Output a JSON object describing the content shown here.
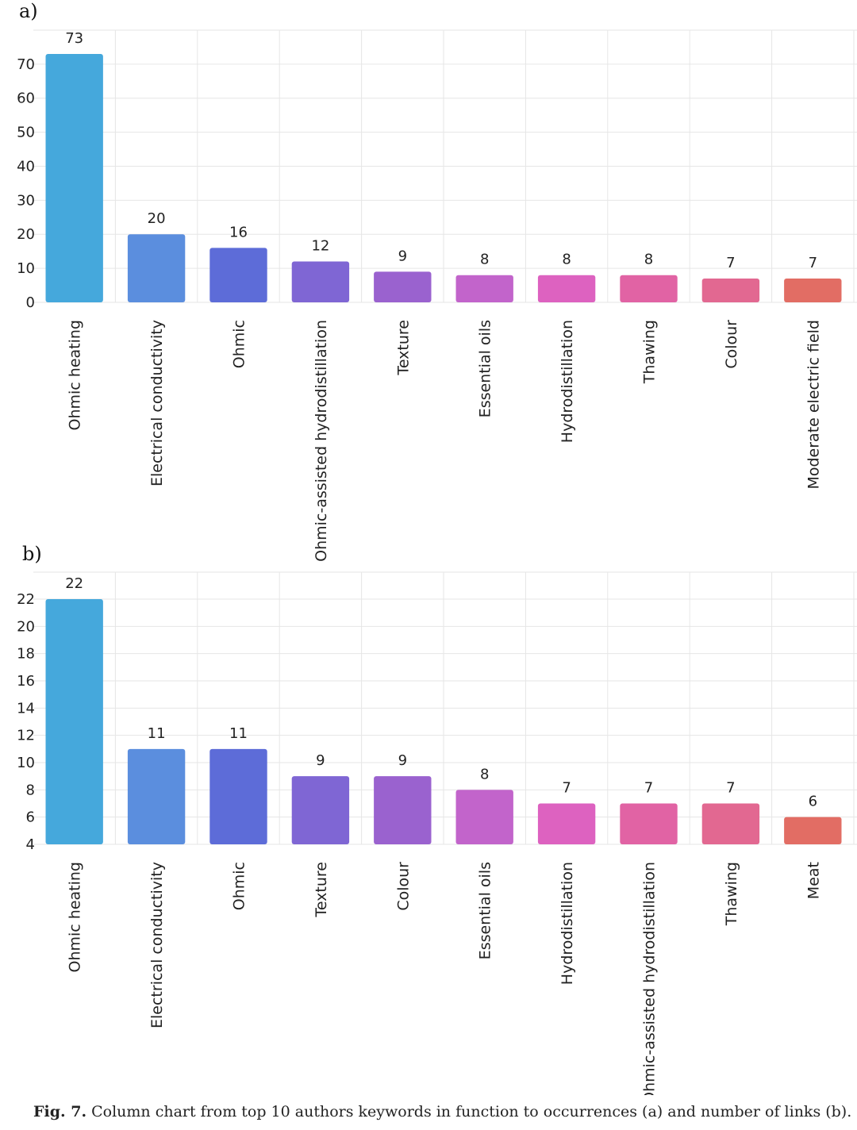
{
  "chart_data": [
    {
      "type": "bar",
      "panel_label": "a)",
      "categories": [
        "Ohmic heating",
        "Electrical conductivity",
        "Ohmic",
        "Ohmic-assisted hydrodistillation",
        "Texture",
        "Essential oils",
        "Hydrodistillation",
        "Thawing",
        "Colour",
        "Moderate electric field"
      ],
      "values": [
        73,
        20,
        16,
        12,
        9,
        8,
        8,
        8,
        7,
        7
      ],
      "ylim": [
        0,
        73
      ],
      "yticks": [
        0,
        10,
        20,
        30,
        40,
        50,
        60,
        70
      ],
      "colors": [
        "#45a8dc",
        "#5b8ede",
        "#5d6cd8",
        "#7f66d4",
        "#9a62cf",
        "#c264cb",
        "#dd62c0",
        "#e163a4",
        "#e26891",
        "#e26d64"
      ],
      "title": "",
      "xlabel": "",
      "ylabel": ""
    },
    {
      "type": "bar",
      "panel_label": "b)",
      "categories": [
        "Ohmic heating",
        "Electrical conductivity",
        "Ohmic",
        "Texture",
        "Colour",
        "Essential oils",
        "Hydrodistillation",
        "Ohmic-assisted hydrodistillation",
        "Thawing",
        "Meat"
      ],
      "values": [
        22,
        11,
        11,
        9,
        9,
        8,
        7,
        7,
        7,
        6
      ],
      "ylim": [
        4,
        22
      ],
      "yticks": [
        4,
        6,
        8,
        10,
        12,
        14,
        16,
        18,
        20,
        22
      ],
      "colors": [
        "#45a8dc",
        "#5b8ede",
        "#5d6cd8",
        "#7f66d4",
        "#9a62cf",
        "#c264cb",
        "#dd62c0",
        "#e163a4",
        "#e26891",
        "#e26d64"
      ],
      "title": "",
      "xlabel": "",
      "ylabel": ""
    }
  ],
  "caption": {
    "label": "Fig. 7.",
    "text": "Column chart from top 10 authors keywords in function to occurrences (a) and number of links (b)."
  }
}
